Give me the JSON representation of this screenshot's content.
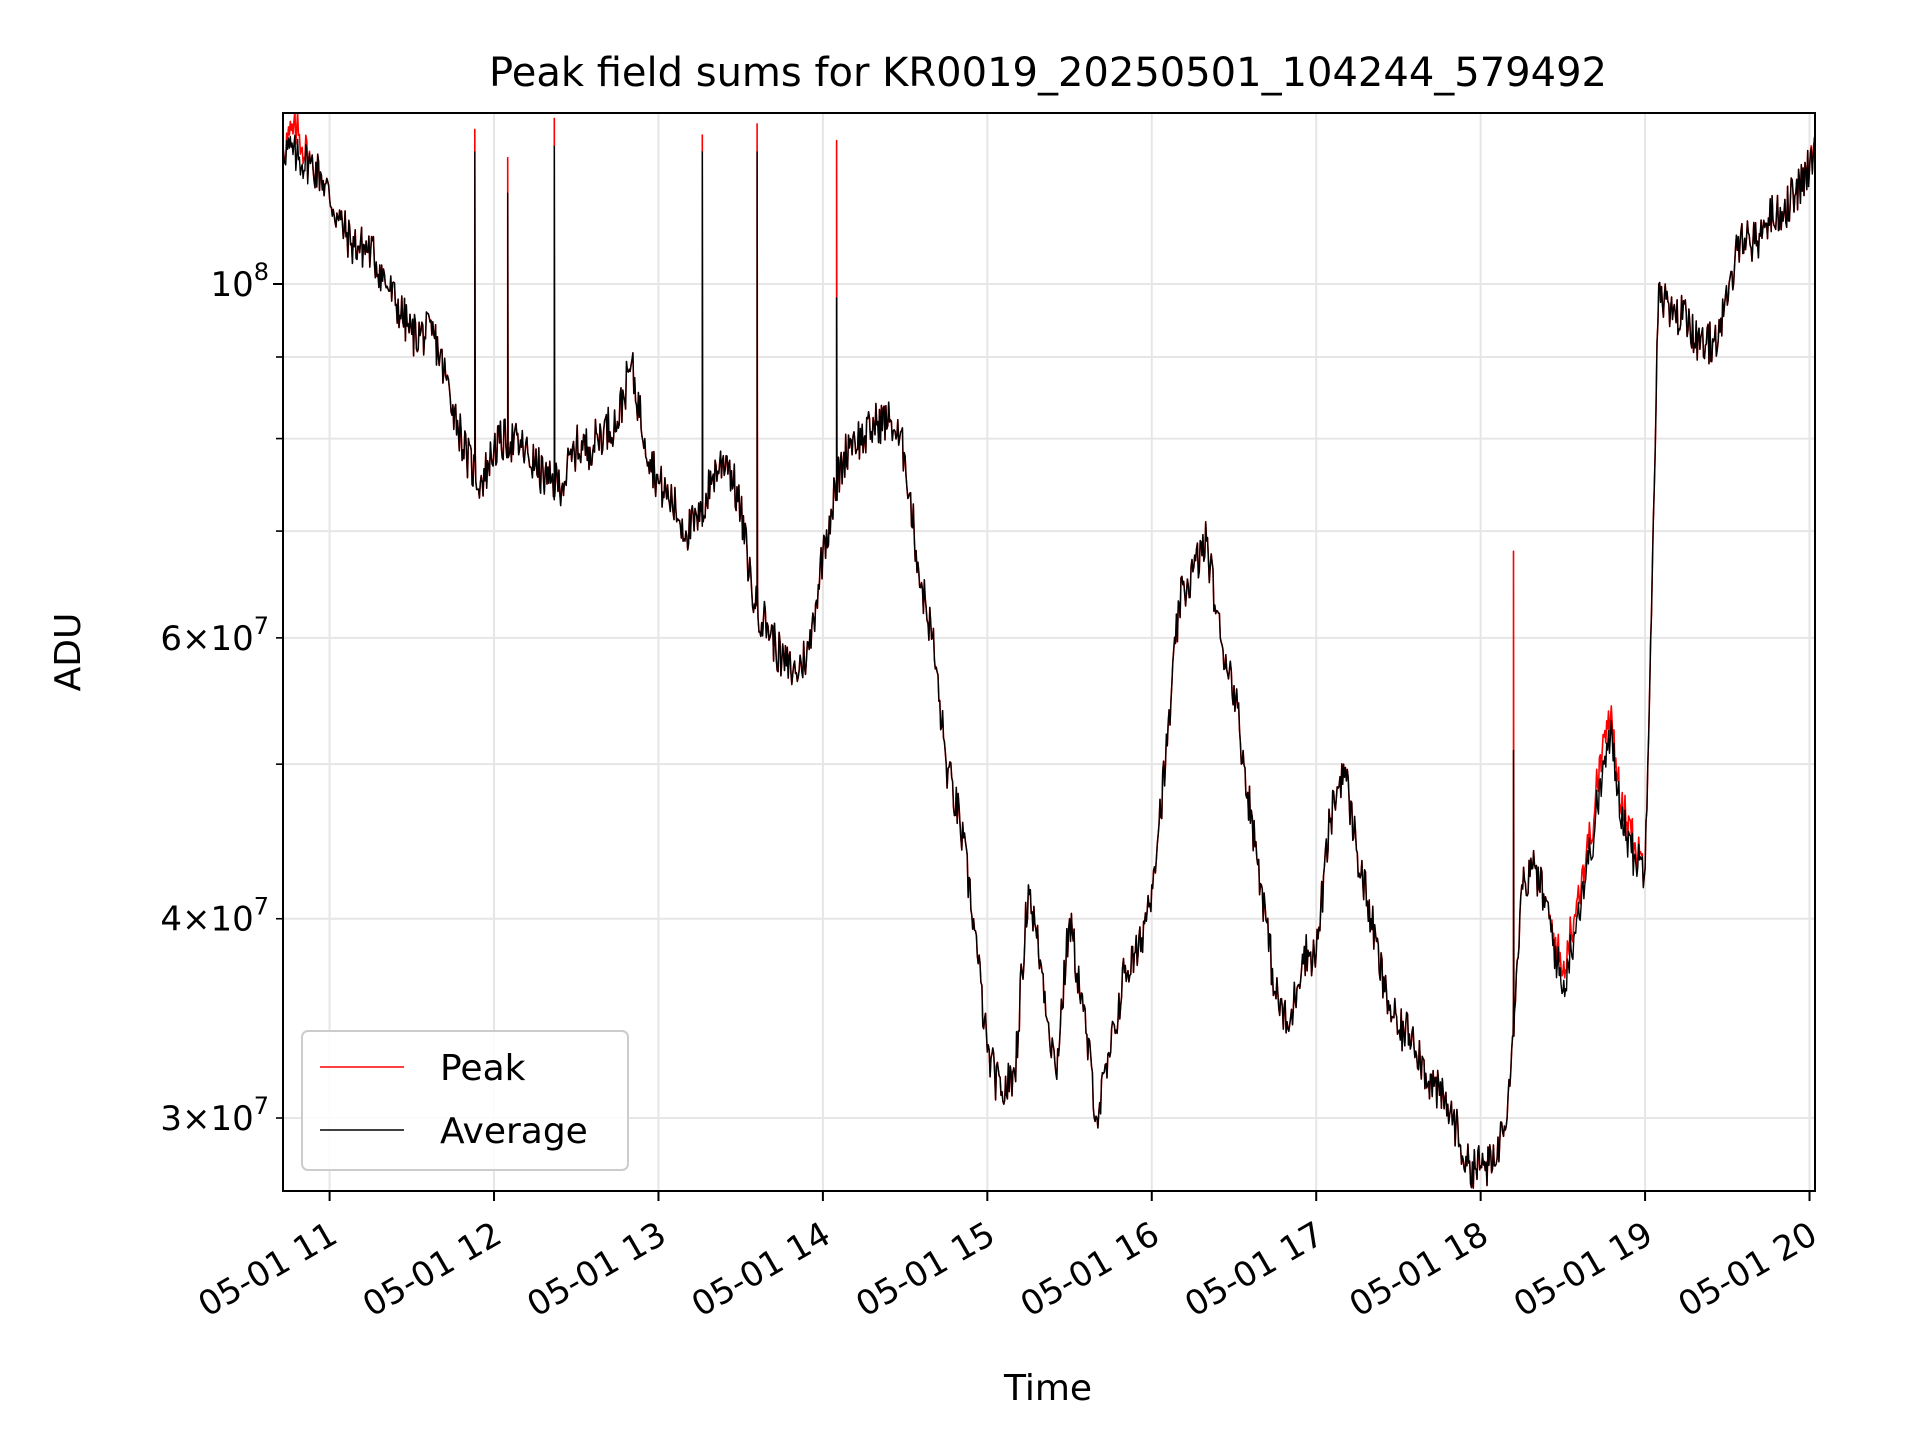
{
  "chart_data": {
    "type": "line",
    "title": "Peak field sums for KR0019_20250501_104244_579492",
    "xlabel": "Time",
    "ylabel": "ADU",
    "yscale": "log",
    "grid": true,
    "legend_placement": "lower-left",
    "xlim": [
      "2025-05-01 10:43",
      "2025-05-01 20:02"
    ],
    "ylim": [
      27000000,
      128000000
    ],
    "x_ticks": [
      "05-01 11",
      "05-01 12",
      "05-01 13",
      "05-01 14",
      "05-01 15",
      "05-01 16",
      "05-01 17",
      "05-01 18",
      "05-01 19",
      "05-01 20"
    ],
    "y_ticks_major": [
      {
        "value": 100000000,
        "base": "10",
        "exp": "8"
      }
    ],
    "y_ticks_minor": [
      {
        "value": 30000000,
        "coef": "3",
        "base": "10",
        "exp": "7"
      },
      {
        "value": 40000000,
        "coef": "4",
        "base": "10",
        "exp": "7"
      },
      {
        "value": 50000000,
        "coef": "",
        "base": "",
        "exp": ""
      },
      {
        "value": 60000000,
        "coef": "6",
        "base": "10",
        "exp": "7"
      },
      {
        "value": 70000000,
        "coef": "",
        "base": "",
        "exp": ""
      },
      {
        "value": 80000000,
        "coef": "",
        "base": "",
        "exp": ""
      },
      {
        "value": 90000000,
        "coef": "",
        "base": "",
        "exp": ""
      }
    ],
    "series": [
      {
        "name": "Peak",
        "color": "#ff0000",
        "role": "peak"
      },
      {
        "name": "Average",
        "color": "#000000",
        "role": "average"
      }
    ],
    "x": [
      "10:43",
      "10:48",
      "10:53",
      "10:57",
      "11:03",
      "11:08",
      "11:15",
      "11:22",
      "11:30",
      "11:38",
      "11:45",
      "11:50",
      "11:55",
      "11:58",
      "12:00",
      "12:05",
      "12:10",
      "12:15",
      "12:20",
      "12:25",
      "12:30",
      "12:35",
      "12:40",
      "12:45",
      "12:50",
      "12:55",
      "13:00",
      "13:05",
      "13:10",
      "13:15",
      "13:20",
      "13:25",
      "13:30",
      "13:35",
      "13:40",
      "13:45",
      "13:50",
      "13:55",
      "14:00",
      "14:05",
      "14:10",
      "14:15",
      "14:20",
      "14:25",
      "14:30",
      "14:35",
      "14:40",
      "14:45",
      "14:50",
      "14:55",
      "15:00",
      "15:05",
      "15:10",
      "15:15",
      "15:20",
      "15:25",
      "15:30",
      "15:35",
      "15:40",
      "15:45",
      "15:50",
      "15:55",
      "16:00",
      "16:05",
      "16:10",
      "16:15",
      "16:20",
      "16:25",
      "16:30",
      "16:35",
      "16:40",
      "16:45",
      "16:50",
      "16:55",
      "17:00",
      "17:05",
      "17:10",
      "17:15",
      "17:20",
      "17:25",
      "17:30",
      "17:35",
      "17:40",
      "17:45",
      "17:50",
      "17:55",
      "18:00",
      "18:05",
      "18:10",
      "18:15",
      "18:20",
      "18:25",
      "18:30",
      "18:35",
      "18:40",
      "18:45",
      "18:48",
      "18:50",
      "18:55",
      "19:00",
      "19:05",
      "19:10",
      "19:15",
      "19:20",
      "19:25",
      "19:30",
      "19:35",
      "19:40",
      "19:45",
      "19:50",
      "19:55",
      "20:00",
      "20:02"
    ],
    "average": [
      122000000,
      120000000,
      119000000,
      117000000,
      110000000,
      106000000,
      105000000,
      99000000,
      93000000,
      93000000,
      84000000,
      78000000,
      75000000,
      77000000,
      79000000,
      80000000,
      79000000,
      77000000,
      75000000,
      75000000,
      79000000,
      79000000,
      81000000,
      82000000,
      89000000,
      80000000,
      75000000,
      73000000,
      70000000,
      71000000,
      76000000,
      78000000,
      72000000,
      63000000,
      61000000,
      58000000,
      57000000,
      59000000,
      68000000,
      75000000,
      80000000,
      80000000,
      82000000,
      82000000,
      78000000,
      66000000,
      60000000,
      50000000,
      46000000,
      40000000,
      33000000,
      31000000,
      32000000,
      42000000,
      37000000,
      32000000,
      40000000,
      35000000,
      30000000,
      33000000,
      37000000,
      38000000,
      42000000,
      50000000,
      63000000,
      66000000,
      69000000,
      60000000,
      56000000,
      48000000,
      42000000,
      36000000,
      34000000,
      38000000,
      38000000,
      46000000,
      50000000,
      44000000,
      40000000,
      36000000,
      34000000,
      34000000,
      32000000,
      31000000,
      30000000,
      28000000,
      28000000,
      28000000,
      31000000,
      42000000,
      43000000,
      40000000,
      36000000,
      40000000,
      44000000,
      50000000,
      52000000,
      48000000,
      44000000,
      43000000,
      100000000,
      95000000,
      96000000,
      91000000,
      92000000,
      97000000,
      108000000,
      106000000,
      110000000,
      111000000,
      114000000,
      118000000,
      123000000
    ],
    "peak": [
      122000000,
      125000000,
      119000000,
      117000000,
      110000000,
      106000000,
      105000000,
      99000000,
      93000000,
      93000000,
      84000000,
      78000000,
      75000000,
      77000000,
      79000000,
      80000000,
      79000000,
      77000000,
      75000000,
      75000000,
      79000000,
      79000000,
      81000000,
      82000000,
      89000000,
      80000000,
      75000000,
      73000000,
      70000000,
      71000000,
      76000000,
      78000000,
      72000000,
      63000000,
      61000000,
      58000000,
      57000000,
      59000000,
      68000000,
      75000000,
      80000000,
      80000000,
      82000000,
      82000000,
      78000000,
      66000000,
      60000000,
      50000000,
      46000000,
      40000000,
      33000000,
      31000000,
      32000000,
      42000000,
      37000000,
      32000000,
      40000000,
      35000000,
      30000000,
      33000000,
      37000000,
      38000000,
      42000000,
      50000000,
      63000000,
      66000000,
      69000000,
      60000000,
      56000000,
      48000000,
      42000000,
      36000000,
      34000000,
      38000000,
      38000000,
      46000000,
      50000000,
      44000000,
      40000000,
      36000000,
      34000000,
      34000000,
      32000000,
      31000000,
      30000000,
      28000000,
      28000000,
      28000000,
      31000000,
      42000000,
      43000000,
      40000000,
      37000000,
      41000000,
      45000000,
      52000000,
      53000000,
      49000000,
      45000000,
      43000000,
      100000000,
      95000000,
      96000000,
      91000000,
      92000000,
      97000000,
      108000000,
      106000000,
      110000000,
      111000000,
      114000000,
      118000000,
      124000000
    ],
    "spikes": [
      {
        "time": "11:53",
        "peak": 125000000,
        "average": 121000000
      },
      {
        "time": "12:05",
        "peak": 120000000,
        "average": 114000000
      },
      {
        "time": "12:22",
        "peak": 127000000,
        "average": 122000000
      },
      {
        "time": "13:16",
        "peak": 124000000,
        "average": 121000000
      },
      {
        "time": "13:36",
        "peak": 126000000,
        "average": 121000000
      },
      {
        "time": "14:05",
        "peak": 123000000,
        "average": 98000000
      },
      {
        "time": "18:12",
        "peak": 68000000,
        "average": 51000000
      }
    ]
  }
}
